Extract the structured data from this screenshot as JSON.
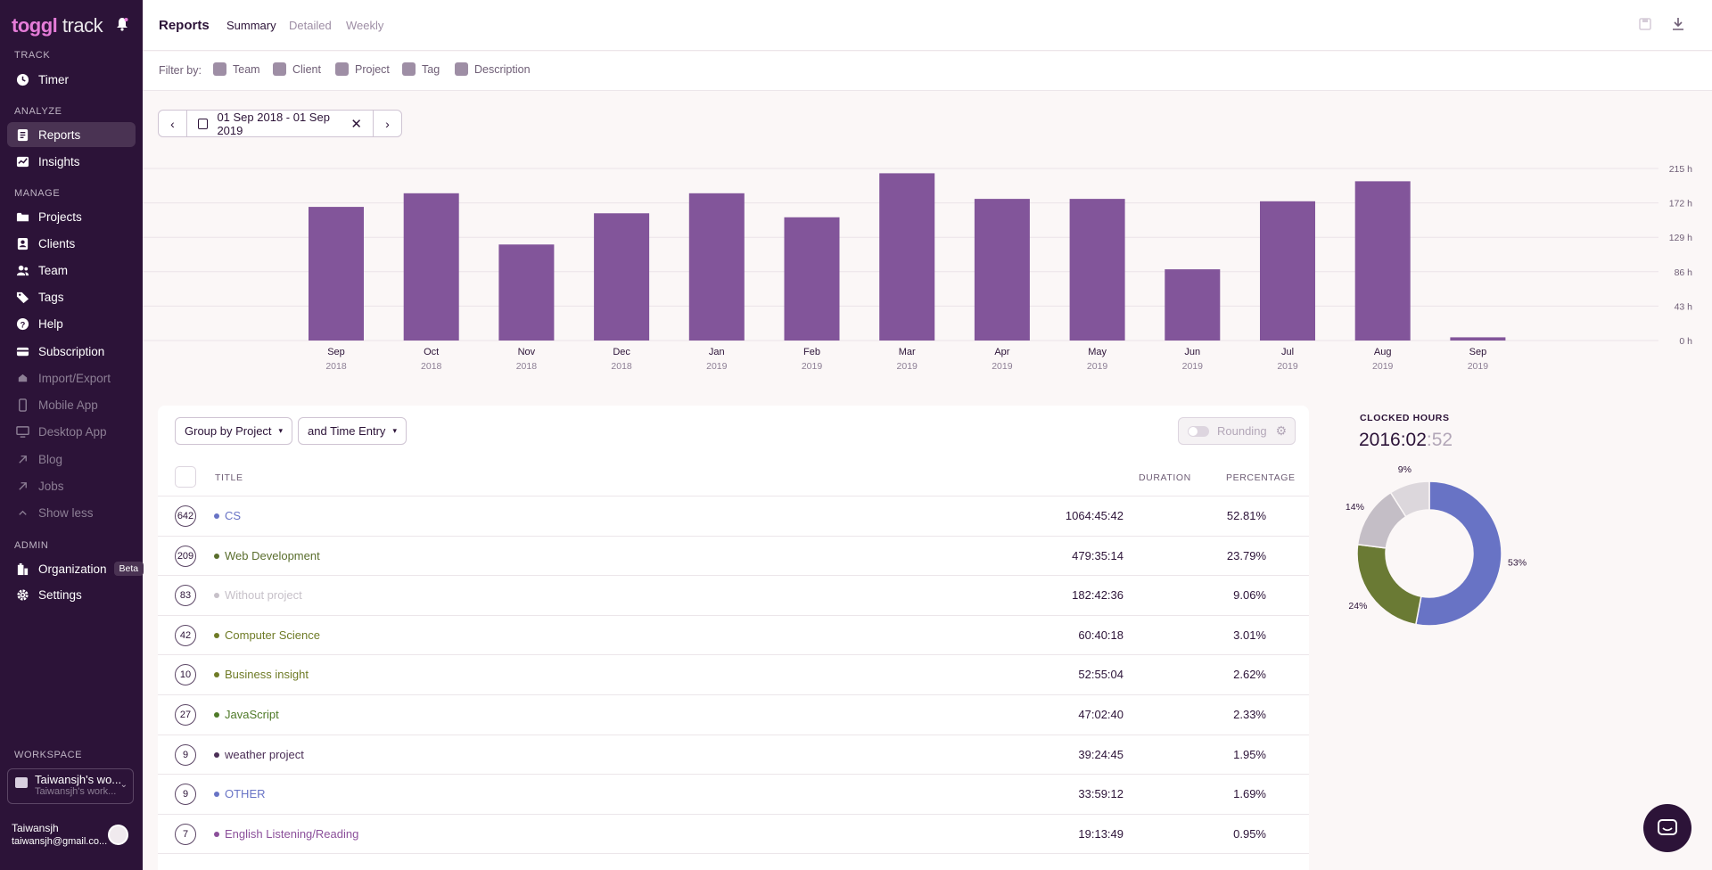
{
  "app": {
    "logo_brand": "toggl",
    "logo_product": "track"
  },
  "sidebar": {
    "sections": {
      "track": "TRACK",
      "analyze": "ANALYZE",
      "manage": "MANAGE",
      "admin": "ADMIN",
      "workspace": "WORKSPACE"
    },
    "items": [
      {
        "label": "Timer",
        "icon": "clock-icon"
      },
      {
        "label": "Reports",
        "icon": "reports-icon"
      },
      {
        "label": "Insights",
        "icon": "insights-icon"
      },
      {
        "label": "Projects",
        "icon": "folder-icon"
      },
      {
        "label": "Clients",
        "icon": "client-icon"
      },
      {
        "label": "Team",
        "icon": "team-icon"
      },
      {
        "label": "Tags",
        "icon": "tag-icon"
      },
      {
        "label": "Help",
        "icon": "help-icon"
      },
      {
        "label": "Subscription",
        "icon": "card-icon"
      },
      {
        "label": "Import/Export",
        "icon": "import-icon"
      },
      {
        "label": "Mobile App",
        "icon": "mobile-icon"
      },
      {
        "label": "Desktop App",
        "icon": "desktop-icon"
      },
      {
        "label": "Blog",
        "icon": "external-link-icon"
      },
      {
        "label": "Jobs",
        "icon": "external-link-icon"
      },
      {
        "label": "Show less",
        "icon": "chevron-up-icon"
      },
      {
        "label": "Organization",
        "icon": "building-icon",
        "badge": "Beta"
      },
      {
        "label": "Settings",
        "icon": "gear-icon"
      }
    ],
    "workspace": {
      "name": "Taiwansjh's wo...",
      "sub": "Taiwansjh's work..."
    },
    "user": {
      "name": "Taiwansjh",
      "email": "taiwansjh@gmail.co..."
    }
  },
  "header": {
    "title": "Reports",
    "tabs": [
      "Summary",
      "Detailed",
      "Weekly"
    ],
    "active_tab": "Summary"
  },
  "filters": {
    "label": "Filter by:",
    "items": [
      "Team",
      "Client",
      "Project",
      "Tag",
      "Description"
    ]
  },
  "date_range": {
    "label": "01 Sep 2018 - 01 Sep 2019"
  },
  "chart_data": {
    "type": "bar",
    "categories": [
      "Sep",
      "Oct",
      "Nov",
      "Dec",
      "Jan",
      "Feb",
      "Mar",
      "Apr",
      "May",
      "Jun",
      "Jul",
      "Aug",
      "Sep"
    ],
    "years": [
      "2018",
      "2018",
      "2018",
      "2018",
      "2019",
      "2019",
      "2019",
      "2019",
      "2019",
      "2019",
      "2019",
      "2019",
      "2019"
    ],
    "values": [
      167,
      184,
      120,
      159,
      184,
      154,
      209,
      177,
      177,
      89,
      174,
      199,
      4
    ],
    "y_ticks": [
      "0 h",
      "43 h",
      "86 h",
      "129 h",
      "172 h",
      "215 h"
    ],
    "ylim": [
      0,
      215
    ],
    "bar_color": "#82559a",
    "grid": true
  },
  "controls": {
    "group_by": "Group by Project",
    "sub_group": "and Time Entry",
    "rounding": "Rounding"
  },
  "table": {
    "headers": {
      "title": "TITLE",
      "duration": "DURATION",
      "percentage": "PERCENTAGE"
    },
    "rows": [
      {
        "count": "642",
        "title": "CS",
        "duration": "1064:45:42",
        "percentage": "52.81%",
        "color": "#6873c5"
      },
      {
        "count": "209",
        "title": "Web Development",
        "duration": "479:35:14",
        "percentage": "23.79%",
        "color": "#5a6e2d"
      },
      {
        "count": "83",
        "title": "Without project",
        "duration": "182:42:36",
        "percentage": "9.06%",
        "color": "#c7c1c9"
      },
      {
        "count": "42",
        "title": "Computer Science",
        "duration": "60:40:18",
        "percentage": "3.01%",
        "color": "#6f7b26"
      },
      {
        "count": "10",
        "title": "Business insight",
        "duration": "52:55:04",
        "percentage": "2.62%",
        "color": "#6f7b26"
      },
      {
        "count": "27",
        "title": "JavaScript",
        "duration": "47:02:40",
        "percentage": "2.33%",
        "color": "#4f7a28"
      },
      {
        "count": "9",
        "title": "weather project",
        "duration": "39:24:45",
        "percentage": "1.95%",
        "color": "#4b2f56"
      },
      {
        "count": "9",
        "title": "OTHER",
        "duration": "33:59:12",
        "percentage": "1.69%",
        "color": "#6873c5"
      },
      {
        "count": "7",
        "title": "English Listening/Reading",
        "duration": "19:13:49",
        "percentage": "0.95%",
        "color": "#8b4f9a"
      }
    ]
  },
  "clocked": {
    "label": "CLOCKED HOURS",
    "main": "2016:02",
    "seconds": ":52"
  },
  "donut": {
    "slices": [
      {
        "label": "53%",
        "value": 53,
        "color": "#6873c5"
      },
      {
        "label": "24%",
        "value": 24,
        "color": "#6a7a34"
      },
      {
        "label": "14%",
        "value": 14,
        "color": "#c4bec6"
      },
      {
        "label": "9%",
        "value": 9,
        "color": "#dcd7dc"
      }
    ]
  }
}
